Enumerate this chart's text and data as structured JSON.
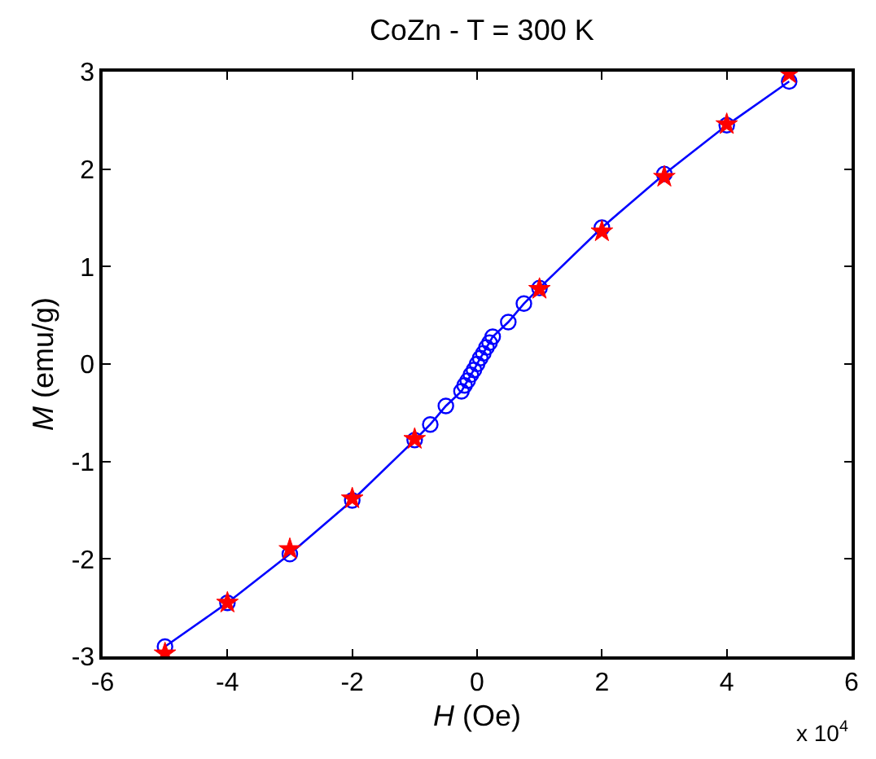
{
  "chart_data": {
    "type": "line",
    "title": "CoZn - T = 300 K",
    "xlabel": "H (Oe)",
    "ylabel": "M (emu/g)",
    "annotations": [
      "x 10$^{4}$"
    ],
    "series": [
      {
        "color": "#0000ff",
        "marker": "circle",
        "line_style": "solid",
        "x": [
          -5,
          -4,
          -3,
          -2,
          -1,
          -0.75,
          -0.5,
          -0.25,
          -0.2,
          -0.15,
          -0.1,
          -0.05,
          0,
          0.05,
          0.1,
          0.15,
          0.2,
          0.25,
          0.5,
          0.75,
          1,
          2,
          3,
          4,
          5
        ],
        "values": [
          -2.9,
          -2.45,
          -1.95,
          -1.4,
          -0.78,
          -0.62,
          -0.43,
          -0.28,
          -0.22,
          -0.17,
          -0.11,
          -0.06,
          0,
          0.06,
          0.11,
          0.17,
          0.22,
          0.28,
          0.43,
          0.62,
          0.78,
          1.4,
          1.95,
          2.45,
          2.9
        ]
      },
      {
        "type": "scatter",
        "color": "#ff0000",
        "marker": "star",
        "x": [
          -5,
          -4,
          -3,
          -2,
          -1,
          1,
          2,
          3,
          4,
          5
        ],
        "values": [
          -2.97,
          -2.45,
          -1.9,
          -1.38,
          -0.77,
          0.77,
          1.36,
          1.92,
          2.46,
          2.98
        ]
      }
    ],
    "xlim": [
      -6,
      6
    ],
    "xticks": [
      -6,
      -4,
      -2,
      0,
      2,
      4,
      6
    ],
    "ylim": [
      -3,
      3
    ],
    "yticks": [
      -3,
      -2,
      -1,
      0,
      1,
      2,
      3
    ]
  }
}
